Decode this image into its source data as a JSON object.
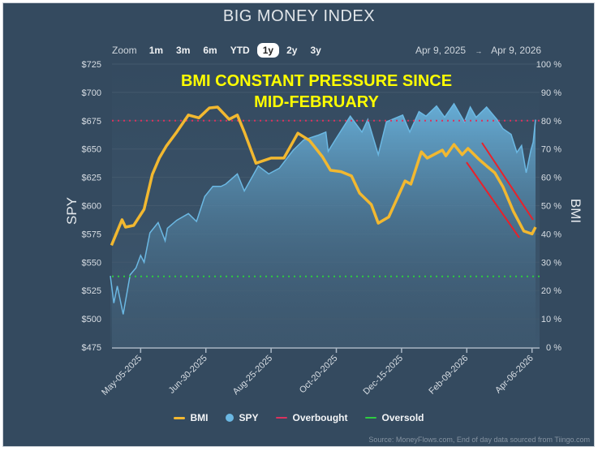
{
  "title": "BIG MONEY INDEX",
  "zoom": {
    "label": "Zoom",
    "buttons": [
      "1m",
      "3m",
      "6m",
      "YTD",
      "1y",
      "2y",
      "3y"
    ],
    "selected": "1y"
  },
  "range": {
    "from": "Apr 9, 2025",
    "arrow": "→",
    "to": "Apr 9, 2026"
  },
  "annotation": {
    "line1": "BMI CONSTANT PRESSURE SINCE",
    "line2": "MID-FEBRUARY"
  },
  "source": "Source: MoneyFlows.com, End of day data sourced from Tiingo.com",
  "chart_data": {
    "type": "line",
    "ylabel_left": "SPY",
    "ylabel_right": "BMI",
    "ylim_left": [
      475,
      725
    ],
    "ylim_right": [
      0,
      100
    ],
    "xlim": [
      "2025-04-09",
      "2026-04-09"
    ],
    "yticks_left": [
      "$725",
      "$700",
      "$675",
      "$650",
      "$625",
      "$600",
      "$575",
      "$550",
      "$525",
      "$500",
      "$475"
    ],
    "yticks_right": [
      "100 %",
      "90 %",
      "80 %",
      "70 %",
      "60 %",
      "50 %",
      "40 %",
      "30 %",
      "20 %",
      "10 %",
      "0 %"
    ],
    "xticks": [
      {
        "date": "2025-05-05",
        "label": "May-05-2025"
      },
      {
        "date": "2025-06-30",
        "label": "Jun-30-2025"
      },
      {
        "date": "2025-08-25",
        "label": "Aug-25-2025"
      },
      {
        "date": "2025-10-20",
        "label": "Oct-20-2025"
      },
      {
        "date": "2025-12-15",
        "label": "Dec-15-2025"
      },
      {
        "date": "2026-02-09",
        "label": "Feb-09-2026"
      },
      {
        "date": "2026-04-06",
        "label": "Apr-06-2026"
      }
    ],
    "grid": true,
    "legend_position": "bottom",
    "colors": {
      "bmi": "#f2b830",
      "spy": "#6bb8e3",
      "overbought": "#d9325e",
      "oversold": "#2ecc40",
      "trend_lines": "#e8212b"
    },
    "overbought": 80,
    "oversold": 25,
    "series": [
      {
        "name": "BMI",
        "axis": "right",
        "points": [
          [
            "2025-04-10",
            36
          ],
          [
            "2025-04-19",
            45
          ],
          [
            "2025-04-22",
            42.4
          ],
          [
            "2025-04-29",
            43
          ],
          [
            "2025-05-08",
            48.7
          ],
          [
            "2025-05-15",
            61
          ],
          [
            "2025-05-21",
            66.8
          ],
          [
            "2025-05-27",
            71
          ],
          [
            "2025-06-05",
            76
          ],
          [
            "2025-06-15",
            82
          ],
          [
            "2025-06-24",
            81
          ],
          [
            "2025-07-03",
            84.5
          ],
          [
            "2025-07-10",
            84.8
          ],
          [
            "2025-07-20",
            80.5
          ],
          [
            "2025-07-27",
            82
          ],
          [
            "2025-08-02",
            76
          ],
          [
            "2025-08-12",
            65
          ],
          [
            "2025-08-25",
            66.8
          ],
          [
            "2025-09-05",
            66.8
          ],
          [
            "2025-09-17",
            75.6
          ],
          [
            "2025-09-27",
            73
          ],
          [
            "2025-10-08",
            67.3
          ],
          [
            "2025-10-15",
            62.5
          ],
          [
            "2025-10-24",
            62
          ],
          [
            "2025-11-02",
            60.5
          ],
          [
            "2025-11-09",
            54.4
          ],
          [
            "2025-11-19",
            50.4
          ],
          [
            "2025-11-25",
            43.8
          ],
          [
            "2025-12-04",
            46
          ],
          [
            "2025-12-18",
            58.7
          ],
          [
            "2025-12-23",
            57.6
          ],
          [
            "2026-01-01",
            69
          ],
          [
            "2026-01-06",
            66.8
          ],
          [
            "2026-01-19",
            69.6
          ],
          [
            "2026-01-22",
            67.6
          ],
          [
            "2026-01-29",
            71.6
          ],
          [
            "2026-02-05",
            68
          ],
          [
            "2026-02-10",
            70.2
          ],
          [
            "2026-02-19",
            66.5
          ],
          [
            "2026-02-26",
            64
          ],
          [
            "2026-03-05",
            61.6
          ],
          [
            "2026-03-12",
            56.7
          ],
          [
            "2026-03-21",
            48
          ],
          [
            "2026-03-30",
            41
          ],
          [
            "2026-04-06",
            40
          ],
          [
            "2026-04-09",
            42.4
          ]
        ]
      },
      {
        "name": "SPY",
        "axis": "left",
        "points": [
          [
            "2025-04-09",
            538
          ],
          [
            "2025-04-12",
            514
          ],
          [
            "2025-04-15",
            529
          ],
          [
            "2025-04-20",
            504
          ],
          [
            "2025-04-26",
            539
          ],
          [
            "2025-05-01",
            545
          ],
          [
            "2025-05-05",
            556
          ],
          [
            "2025-05-08",
            550
          ],
          [
            "2025-05-13",
            576
          ],
          [
            "2025-05-20",
            585
          ],
          [
            "2025-05-26",
            569
          ],
          [
            "2025-05-28",
            580
          ],
          [
            "2025-06-05",
            587
          ],
          [
            "2025-06-15",
            593
          ],
          [
            "2025-06-22",
            586
          ],
          [
            "2025-06-29",
            608
          ],
          [
            "2025-07-06",
            617
          ],
          [
            "2025-07-13",
            617
          ],
          [
            "2025-07-17",
            619
          ],
          [
            "2025-07-27",
            628
          ],
          [
            "2025-08-02",
            613
          ],
          [
            "2025-08-14",
            635
          ],
          [
            "2025-08-23",
            628
          ],
          [
            "2025-09-01",
            633
          ],
          [
            "2025-09-13",
            649
          ],
          [
            "2025-09-22",
            658
          ],
          [
            "2025-10-04",
            662
          ],
          [
            "2025-10-11",
            665
          ],
          [
            "2025-10-13",
            648
          ],
          [
            "2025-10-19",
            658
          ],
          [
            "2025-11-01",
            679
          ],
          [
            "2025-11-11",
            665
          ],
          [
            "2025-11-16",
            676
          ],
          [
            "2025-11-25",
            645
          ],
          [
            "2025-12-02",
            674
          ],
          [
            "2025-12-16",
            680
          ],
          [
            "2025-12-22",
            665
          ],
          [
            "2025-12-30",
            683
          ],
          [
            "2026-01-05",
            679
          ],
          [
            "2026-01-14",
            688
          ],
          [
            "2026-01-21",
            678
          ],
          [
            "2026-01-29",
            690
          ],
          [
            "2026-02-07",
            674
          ],
          [
            "2026-02-12",
            687
          ],
          [
            "2026-02-17",
            678
          ],
          [
            "2026-02-26",
            687
          ],
          [
            "2026-03-07",
            676
          ],
          [
            "2026-03-12",
            668
          ],
          [
            "2026-03-19",
            663
          ],
          [
            "2026-03-24",
            647
          ],
          [
            "2026-03-28",
            653
          ],
          [
            "2026-04-01",
            629
          ],
          [
            "2026-04-05",
            649
          ],
          [
            "2026-04-07",
            656
          ],
          [
            "2026-04-09",
            676
          ]
        ]
      }
    ],
    "legend": [
      {
        "name": "BMI",
        "marker": "line"
      },
      {
        "name": "SPY",
        "marker": "dot"
      },
      {
        "name": "Overbought",
        "marker": "line"
      },
      {
        "name": "Oversold",
        "marker": "line"
      }
    ]
  }
}
